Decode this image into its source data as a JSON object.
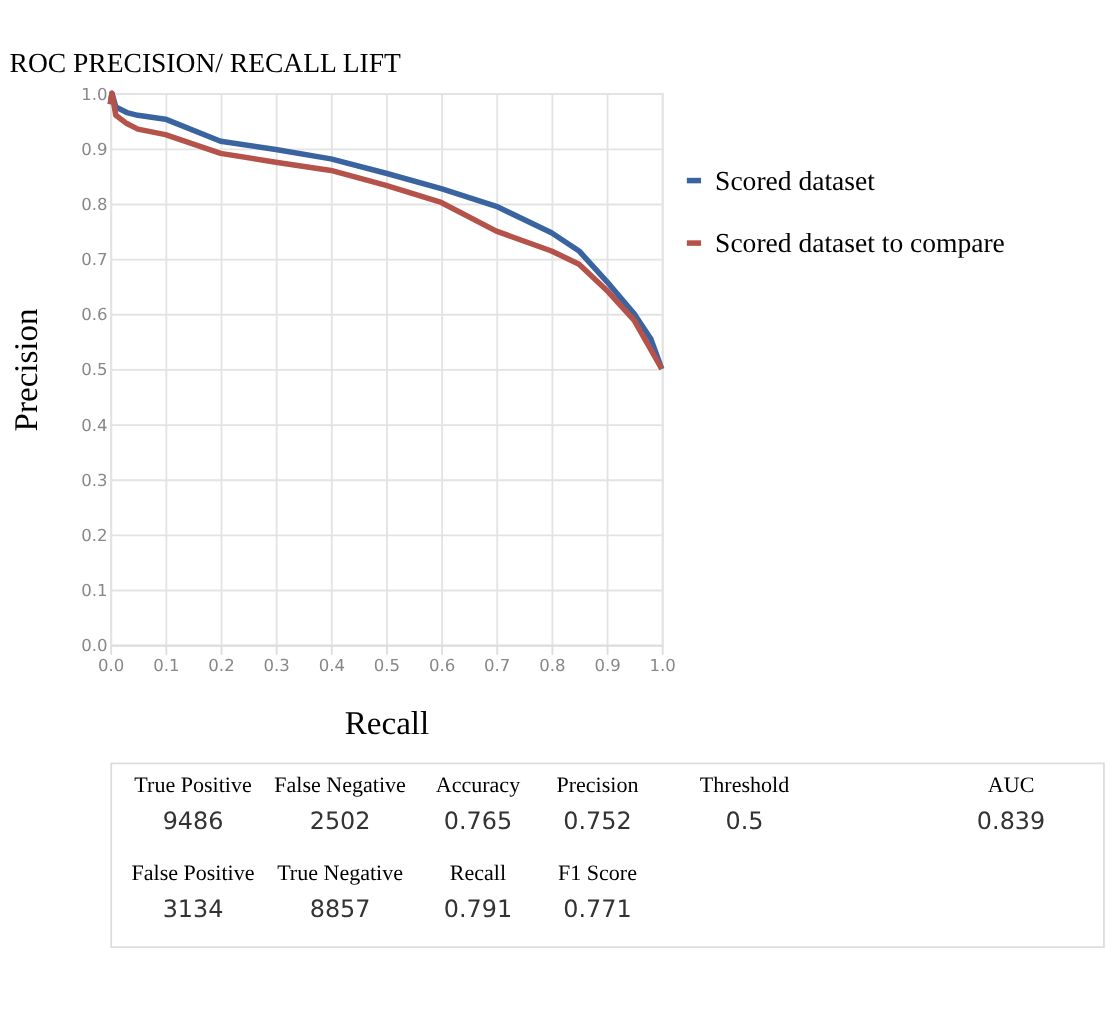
{
  "chart_data": {
    "type": "line",
    "title": "ROC PRECISION/ RECALL LIFT",
    "xlabel": "Recall",
    "ylabel": "Precision",
    "xlim": [
      0,
      1
    ],
    "ylim": [
      0,
      1
    ],
    "xticks": [
      {
        "value": 0,
        "label": "0.0"
      },
      0.1,
      0.2,
      0.3,
      0.4,
      0.5,
      0.6,
      0.7,
      0.8,
      0.9,
      {
        "value": 1,
        "label": "1.0"
      }
    ],
    "yticks": [
      {
        "value": 0,
        "label": "0.0"
      },
      0.1,
      0.2,
      0.3,
      0.4,
      0.5,
      0.6,
      0.7,
      0.8,
      0.9,
      {
        "value": 1,
        "label": "1.0"
      }
    ],
    "grid": true,
    "legend": "right",
    "marker": "none",
    "line_style": "solid",
    "series": [
      {
        "name": "Scored dataset",
        "color": "#3a64a0",
        "x": [
          0,
          0.003,
          0.01,
          0.03,
          0.05,
          0.1,
          0.2,
          0.3,
          0.4,
          0.5,
          0.6,
          0.7,
          0.8,
          0.85,
          0.9,
          0.95,
          0.98,
          1.0
        ],
        "values": [
          0.98,
          1.0,
          0.975,
          0.965,
          0.96,
          0.953,
          0.913,
          0.898,
          0.881,
          0.855,
          0.827,
          0.795,
          0.747,
          0.714,
          0.659,
          0.6,
          0.555,
          0.5
        ]
      },
      {
        "name": "Scored dataset to compare",
        "color": "#b5534a",
        "x": [
          0,
          0.003,
          0.01,
          0.03,
          0.05,
          0.1,
          0.2,
          0.3,
          0.4,
          0.5,
          0.6,
          0.7,
          0.8,
          0.85,
          0.9,
          0.95,
          1.0
        ],
        "values": [
          0.98,
          1.0,
          0.96,
          0.945,
          0.935,
          0.925,
          0.891,
          0.875,
          0.86,
          0.833,
          0.802,
          0.75,
          0.714,
          0.69,
          0.643,
          0.588,
          0.5
        ]
      }
    ],
    "annotations": [
      "True Positive",
      "9486",
      "False Negative",
      "2502",
      "Accuracy",
      "0.765",
      "Precision",
      "0.752",
      "Threshold",
      "0.5",
      "AUC",
      "0.839",
      "False Positive",
      "3134",
      "True Negative",
      "8857",
      "Recall",
      "0.791",
      "F1 Score",
      "0.771"
    ]
  }
}
